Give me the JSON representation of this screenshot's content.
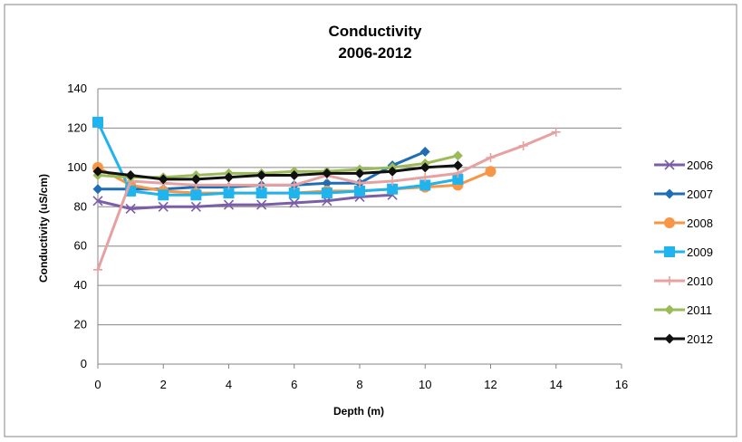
{
  "chart_data": {
    "type": "line",
    "title": "Conductivity",
    "subtitle": "2006-2012",
    "xlabel": "Depth (m)",
    "ylabel": "Conductivity (uS/cm)",
    "xlim": [
      0,
      16
    ],
    "ylim": [
      0,
      140
    ],
    "xticks": [
      0,
      2,
      4,
      6,
      8,
      10,
      12,
      14,
      16
    ],
    "yticks": [
      0,
      20,
      40,
      60,
      80,
      100,
      120,
      140
    ],
    "grid": "horizontal",
    "legend": "right",
    "series": [
      {
        "name": "2006",
        "color": "#7b5ea7",
        "marker": "x",
        "x": [
          0,
          1,
          2,
          3,
          4,
          5,
          6,
          7,
          8,
          9
        ],
        "y": [
          83,
          79,
          80,
          80,
          81,
          81,
          82,
          83,
          85,
          86
        ]
      },
      {
        "name": "2007",
        "color": "#1f6eb5",
        "marker": "diamond",
        "x": [
          0,
          1,
          2,
          3,
          4,
          5,
          6,
          7,
          8,
          9,
          10
        ],
        "y": [
          89,
          89,
          89,
          90,
          90,
          91,
          91,
          92,
          92,
          101,
          108
        ]
      },
      {
        "name": "2008",
        "color": "#f79646",
        "marker": "circle",
        "x": [
          0,
          1,
          2,
          3,
          4,
          5,
          6,
          7,
          8,
          9,
          10,
          11,
          12
        ],
        "y": [
          100,
          91,
          88,
          87,
          87,
          87,
          87,
          88,
          88,
          89,
          90,
          91,
          98
        ]
      },
      {
        "name": "2009",
        "color": "#1fb4ee",
        "marker": "square",
        "x": [
          0,
          1,
          2,
          3,
          4,
          5,
          6,
          7,
          8,
          9,
          10,
          11
        ],
        "y": [
          123,
          88,
          86,
          86,
          87,
          87,
          87,
          87,
          88,
          89,
          91,
          94
        ]
      },
      {
        "name": "2010",
        "color": "#e6a1a0",
        "marker": "plus",
        "x": [
          0,
          1,
          2,
          3,
          4,
          5,
          6,
          7,
          8,
          9,
          10,
          11,
          12,
          13,
          14
        ],
        "y": [
          48,
          93,
          92,
          91,
          91,
          91,
          91,
          96,
          92,
          93,
          95,
          97,
          105,
          111,
          118
        ]
      },
      {
        "name": "2011",
        "color": "#9bbb59",
        "marker": "diamond",
        "x": [
          0,
          1,
          2,
          3,
          4,
          5,
          6,
          7,
          8,
          9,
          10,
          11
        ],
        "y": [
          96,
          95,
          95,
          96,
          97,
          97,
          98,
          98,
          99,
          100,
          102,
          106
        ]
      },
      {
        "name": "2012",
        "color": "#111111",
        "marker": "diamond",
        "x": [
          0,
          1,
          2,
          3,
          4,
          5,
          6,
          7,
          8,
          9,
          10,
          11
        ],
        "y": [
          98,
          96,
          94,
          94,
          95,
          96,
          96,
          97,
          97,
          98,
          100,
          101
        ]
      }
    ]
  }
}
